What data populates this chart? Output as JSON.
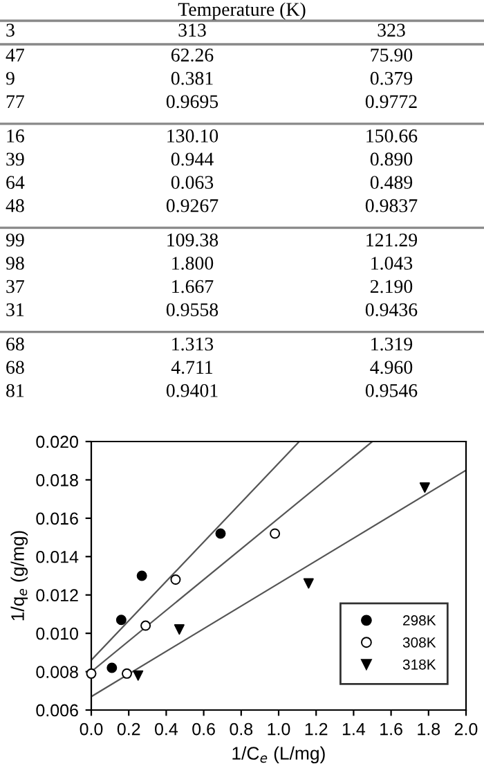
{
  "chart_data": [
    {
      "type": "other",
      "title": "Temperature (K)",
      "categories": [
        "3",
        "313",
        "323"
      ],
      "cell_labels": [
        [
          "47",
          "62.26",
          "75.90"
        ],
        [
          "9",
          "0.381",
          "0.379"
        ],
        [
          "77",
          "0.9695",
          "0.9772"
        ],
        null,
        [
          "16",
          "130.10",
          "150.66"
        ],
        [
          "39",
          "0.944",
          "0.890"
        ],
        [
          "64",
          "0.063",
          "0.489"
        ],
        [
          "48",
          "0.9267",
          "0.9837"
        ],
        null,
        [
          "99",
          "109.38",
          "121.29"
        ],
        [
          "98",
          "1.800",
          "1.043"
        ],
        [
          "37",
          "1.667",
          "2.190"
        ],
        [
          "31",
          "0.9558",
          "0.9436"
        ],
        null,
        [
          "68",
          "1.313",
          "1.319"
        ],
        [
          "68",
          "4.711",
          "4.960"
        ],
        [
          "81",
          "0.9401",
          "0.9546"
        ],
        null
      ]
    },
    {
      "type": "scatter",
      "xlabel": "1/C$_{e}$ (L/mg)",
      "ylabel": "1/q$_{e}$ (g/mg)",
      "xlim": [
        0,
        2
      ],
      "ylim": [
        0.006,
        0.02
      ],
      "xticks": [
        {
          "value": 0,
          "label": "0.0"
        },
        {
          "value": 0.2,
          "label": "0.2"
        },
        {
          "value": 0.4,
          "label": "0.4"
        },
        {
          "value": 0.6,
          "label": "0.6"
        },
        {
          "value": 0.8,
          "label": "0.8"
        },
        {
          "value": 1,
          "label": "1.0"
        },
        {
          "value": 1.2,
          "label": "1.2"
        },
        {
          "value": 1.4,
          "label": "1.4"
        },
        {
          "value": 1.6,
          "label": "1.6"
        },
        {
          "value": 1.8,
          "label": "1.8"
        },
        {
          "value": 2,
          "label": "2.0"
        }
      ],
      "yticks": [
        {
          "value": 0.006,
          "label": "0.006"
        },
        {
          "value": 0.008,
          "label": "0.008"
        },
        {
          "value": 0.01,
          "label": "0.010"
        },
        {
          "value": 0.012,
          "label": "0.012"
        },
        {
          "value": 0.014,
          "label": "0.014"
        },
        {
          "value": 0.016,
          "label": "0.016"
        },
        {
          "value": 0.018,
          "label": "0.018"
        },
        {
          "value": 0.02,
          "label": "0.020"
        }
      ],
      "grid": false,
      "legend": "bottom right",
      "series": [
        {
          "name": "298K",
          "type": "scatter",
          "marker": "circle",
          "color": "#000000",
          "x": [
            0.11,
            0.16,
            0.27,
            0.69
          ],
          "values": [
            0.0082,
            0.0107,
            0.013,
            0.0152
          ]
        },
        {
          "name": "308K",
          "type": "scatter",
          "marker": "circle",
          "color": "#ffffff",
          "x": [
            0,
            0.19,
            0.29,
            0.45,
            0.98
          ],
          "values": [
            0.0079,
            0.0079,
            0.0104,
            0.0128,
            0.0152
          ]
        },
        {
          "name": "318K",
          "type": "scatter",
          "marker": "triangle",
          "color": "#000000",
          "x": [
            0.25,
            0.47,
            1.16,
            1.78
          ],
          "values": [
            0.0078,
            0.0102,
            0.0126,
            0.0176
          ]
        },
        {
          "type": "line",
          "color": "#555555",
          "x": [
            0,
            1.11
          ],
          "values": [
            0.0086,
            0.02
          ]
        },
        {
          "type": "line",
          "color": "#555555",
          "x": [
            0,
            1.5
          ],
          "values": [
            0.008,
            0.02
          ]
        },
        {
          "type": "line",
          "color": "#555555",
          "x": [
            0,
            2
          ],
          "values": [
            0.0067,
            0.0185
          ]
        }
      ]
    }
  ]
}
